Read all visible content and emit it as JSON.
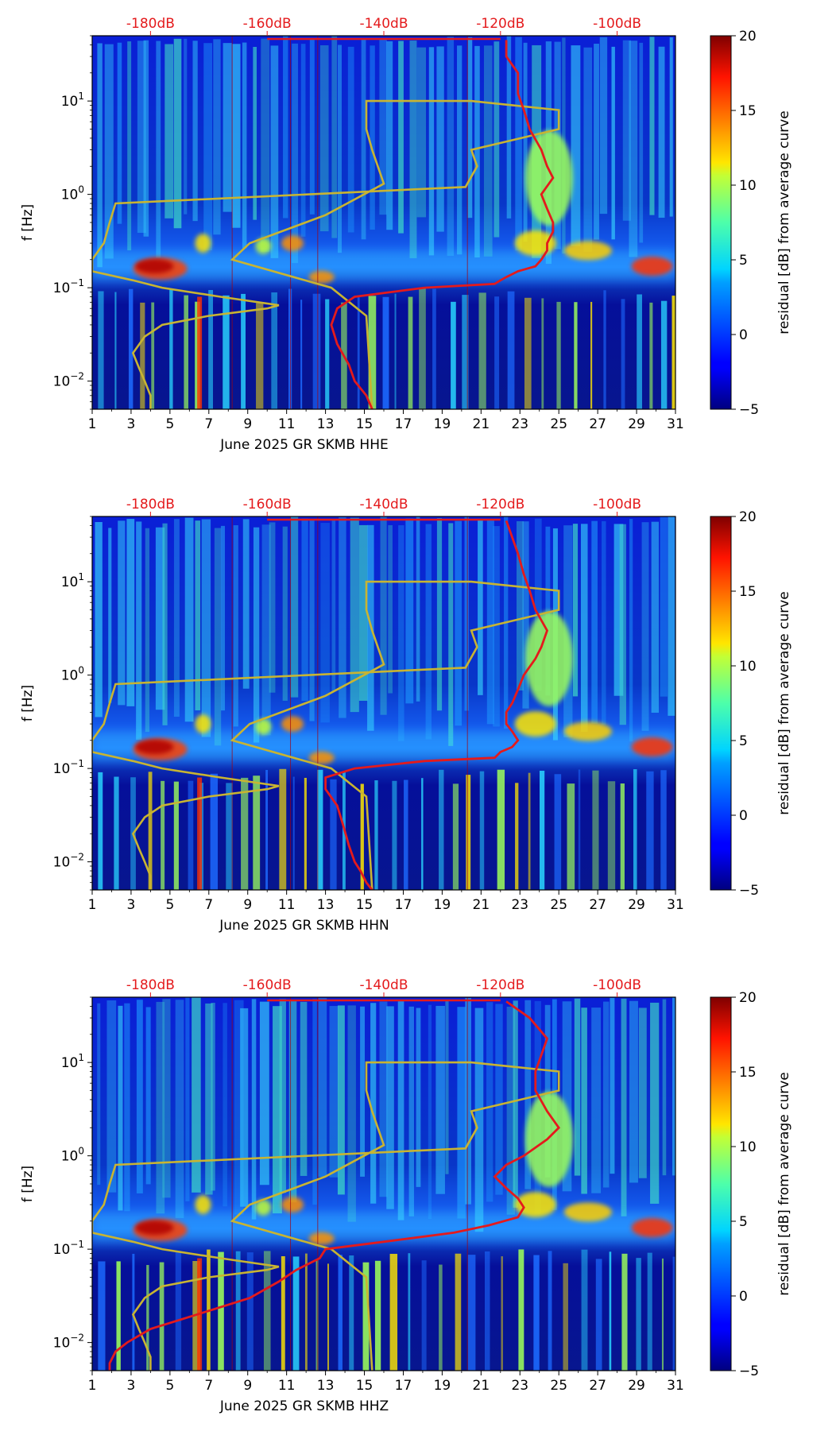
{
  "colors": {
    "psd_curve": "#e41a1c",
    "noise_model": "#c8b432",
    "top_axis_text": "#e41a1c",
    "frame": "#000000"
  },
  "shared": {
    "xticks": [
      1,
      3,
      5,
      7,
      9,
      11,
      13,
      15,
      17,
      19,
      21,
      23,
      25,
      27,
      29,
      31
    ],
    "xlim": [
      1,
      31
    ],
    "ylabel": "f [Hz]",
    "ylim_hz": [
      0.005,
      50
    ],
    "yticks": [
      {
        "value": 0.01,
        "base": "10",
        "exp": "−2"
      },
      {
        "value": 0.1,
        "base": "10",
        "exp": "−1"
      },
      {
        "value": 1,
        "base": "10",
        "exp": "0"
      },
      {
        "value": 10,
        "base": "10",
        "exp": "1"
      }
    ],
    "top_axis": {
      "labels": [
        "-180dB",
        "-160dB",
        "-140dB",
        "-120dB",
        "-100dB"
      ],
      "values": [
        -180,
        -160,
        -140,
        -120,
        -100
      ],
      "range_db": [
        -190,
        -90
      ]
    },
    "colorbar": {
      "label": "residual [dB] from average curve",
      "ticks": [
        20,
        15,
        10,
        5,
        0,
        "−5"
      ],
      "range": [
        -5,
        20
      ],
      "colormap": "jet"
    }
  },
  "chart_data": [
    {
      "type": "heatmap",
      "title": "",
      "xlabel": "June 2025 GR SKMB  HHE",
      "ylabel": "f [Hz]",
      "channel": "HHE",
      "psd_curve": {
        "name": "average PSD",
        "db": [
          -119,
          -119,
          -117,
          -117,
          -116,
          -115,
          -113,
          -112,
          -111,
          -113,
          -112,
          -111,
          -111,
          -112,
          -112,
          -113,
          -114,
          -117,
          -119,
          -120,
          -121,
          -133,
          -145,
          -148,
          -149,
          -148,
          -146,
          -145,
          -143,
          -142
        ],
        "freq_hz": [
          45,
          30,
          20,
          12,
          8,
          5,
          3,
          2,
          1.5,
          1,
          0.7,
          0.5,
          0.4,
          0.3,
          0.25,
          0.2,
          0.17,
          0.15,
          0.13,
          0.12,
          0.11,
          0.1,
          0.08,
          0.06,
          0.04,
          0.025,
          0.015,
          0.01,
          0.007,
          0.005
        ]
      },
      "noise_model": {
        "name": "noise model",
        "db": [
          -180,
          -180,
          -181,
          -182,
          -183,
          -181,
          -178,
          -170,
          -160,
          -158,
          -168,
          -178,
          -183,
          -190,
          -190,
          -188,
          -187,
          -186,
          -126,
          -124,
          -125,
          -110,
          -110,
          -125,
          -143,
          -143,
          -142,
          -140,
          -150,
          -163,
          -166,
          -149,
          -143,
          -142
        ],
        "freq_hz": [
          0.005,
          0.007,
          0.01,
          0.014,
          0.02,
          0.03,
          0.04,
          0.05,
          0.06,
          0.065,
          0.08,
          0.1,
          0.12,
          0.15,
          0.2,
          0.3,
          0.5,
          0.8,
          1.2,
          2,
          3,
          5,
          8,
          10,
          10,
          5,
          3,
          1.3,
          0.6,
          0.3,
          0.2,
          0.1,
          0.05,
          0.005
        ]
      }
    },
    {
      "type": "heatmap",
      "title": "",
      "xlabel": "June 2025 GR SKMB  HHN",
      "ylabel": "f [Hz]",
      "channel": "HHN",
      "psd_curve": {
        "name": "average PSD",
        "db": [
          -119,
          -118,
          -117,
          -116,
          -115,
          -114,
          -112,
          -113,
          -114,
          -116,
          -117,
          -118,
          -119,
          -119,
          -118,
          -117,
          -118,
          -120,
          -121,
          -133,
          -145,
          -150,
          -150,
          -148,
          -147,
          -146,
          -145,
          -144,
          -143,
          -142
        ],
        "freq_hz": [
          45,
          30,
          20,
          12,
          8,
          5,
          3,
          2,
          1.5,
          1,
          0.7,
          0.5,
          0.4,
          0.3,
          0.25,
          0.2,
          0.17,
          0.15,
          0.13,
          0.12,
          0.1,
          0.08,
          0.06,
          0.04,
          0.025,
          0.015,
          0.01,
          0.008,
          0.006,
          0.005
        ]
      },
      "noise_model": {
        "name": "noise model",
        "db": [
          -180,
          -180,
          -181,
          -182,
          -183,
          -181,
          -178,
          -170,
          -160,
          -158,
          -168,
          -178,
          -183,
          -190,
          -190,
          -188,
          -187,
          -186,
          -126,
          -124,
          -125,
          -110,
          -110,
          -125,
          -143,
          -143,
          -142,
          -140,
          -150,
          -163,
          -166,
          -149,
          -143,
          -142
        ],
        "freq_hz": [
          0.005,
          0.007,
          0.01,
          0.014,
          0.02,
          0.03,
          0.04,
          0.05,
          0.06,
          0.065,
          0.08,
          0.1,
          0.12,
          0.15,
          0.2,
          0.3,
          0.5,
          0.8,
          1.2,
          2,
          3,
          5,
          8,
          10,
          10,
          5,
          3,
          1.3,
          0.6,
          0.3,
          0.2,
          0.1,
          0.05,
          0.005
        ]
      }
    },
    {
      "type": "heatmap",
      "title": "",
      "xlabel": "June 2025 GR SKMB  HHZ",
      "ylabel": "f [Hz]",
      "channel": "HHZ",
      "psd_curve": {
        "name": "average PSD",
        "db": [
          -119,
          -115,
          -112,
          -113,
          -114,
          -114,
          -112,
          -110,
          -112,
          -116,
          -119,
          -121,
          -119,
          -117,
          -116,
          -117,
          -122,
          -128,
          -140,
          -150,
          -151,
          -155,
          -158,
          -163,
          -172,
          -180,
          -184,
          -186,
          -187,
          -187
        ],
        "freq_hz": [
          45,
          30,
          18,
          12,
          8,
          5,
          3,
          2,
          1.5,
          1,
          0.8,
          0.6,
          0.45,
          0.35,
          0.28,
          0.22,
          0.18,
          0.15,
          0.12,
          0.1,
          0.08,
          0.06,
          0.045,
          0.03,
          0.02,
          0.014,
          0.01,
          0.008,
          0.006,
          0.005
        ]
      },
      "noise_model": {
        "name": "noise model",
        "db": [
          -180,
          -180,
          -181,
          -182,
          -183,
          -181,
          -178,
          -170,
          -160,
          -158,
          -168,
          -178,
          -183,
          -190,
          -190,
          -188,
          -187,
          -186,
          -126,
          -124,
          -125,
          -110,
          -110,
          -125,
          -143,
          -143,
          -142,
          -140,
          -150,
          -163,
          -166,
          -149,
          -143,
          -142
        ],
        "freq_hz": [
          0.005,
          0.007,
          0.01,
          0.014,
          0.02,
          0.03,
          0.04,
          0.05,
          0.06,
          0.065,
          0.08,
          0.1,
          0.12,
          0.15,
          0.2,
          0.3,
          0.5,
          0.8,
          1.2,
          2,
          3,
          5,
          8,
          10,
          10,
          5,
          3,
          1.3,
          0.6,
          0.3,
          0.2,
          0.1,
          0.05,
          0.005
        ]
      }
    }
  ]
}
